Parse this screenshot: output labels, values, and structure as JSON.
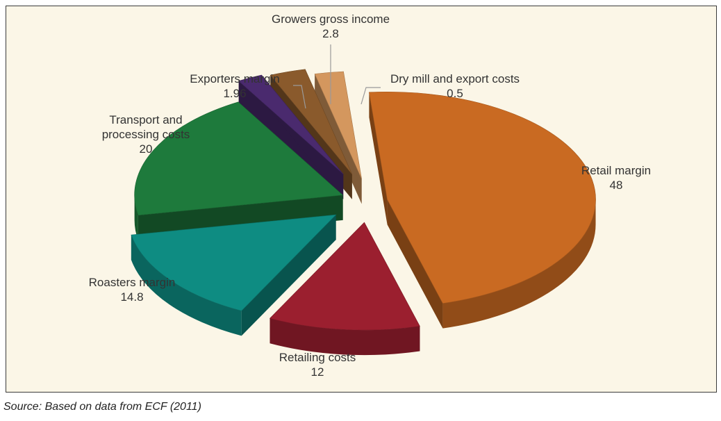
{
  "chart_data": {
    "type": "pie",
    "style": "3d-exploded",
    "slices": [
      {
        "label": "Retail margin",
        "value": 48,
        "value_text": "48",
        "color": "#c96a22"
      },
      {
        "label": "Retailing costs",
        "value": 12,
        "value_text": "12",
        "color": "#9b1f2f"
      },
      {
        "label": "Roasters margin",
        "value": 14.8,
        "value_text": "14.8",
        "color": "#0e8c82"
      },
      {
        "label": "Transport and processing costs",
        "value": 20,
        "value_text": "20",
        "color": "#1e7a3c"
      },
      {
        "label": "Exporters margin",
        "value": 1.96,
        "value_text": "1.96",
        "color": "#4a2a6e"
      },
      {
        "label": "Growers gross income",
        "value": 2.8,
        "value_text": "2.8",
        "color": "#8a5a2c"
      },
      {
        "label": "Dry mill and export costs",
        "value": 0.5,
        "value_text": "0.5",
        "color": "#d4975e"
      }
    ]
  },
  "source": "Source: Based on data from ECF (2011)"
}
